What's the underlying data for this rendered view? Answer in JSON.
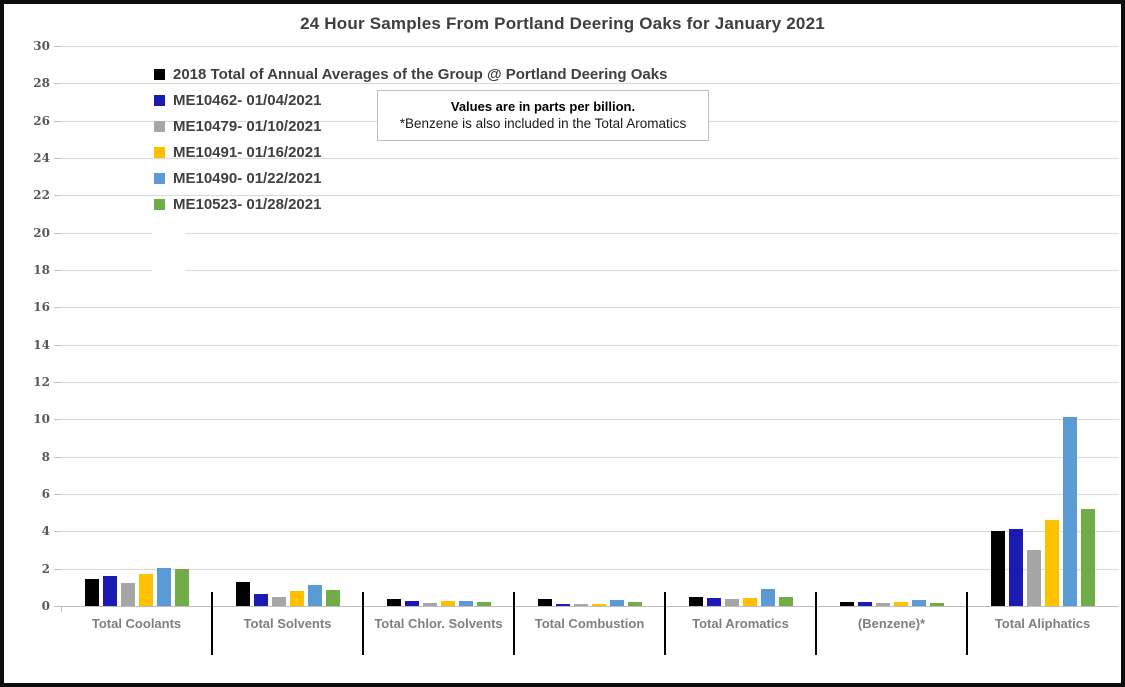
{
  "chart_data": {
    "type": "bar",
    "title": "24 Hour Samples From Portland Deering Oaks for January 2021",
    "note": {
      "line1": "Values are in parts per billion.",
      "line2": "*Benzene is also included in the Total Aromatics"
    },
    "units": "parts per billion",
    "categories": [
      "Total Coolants",
      "Total Solvents",
      "Total Chlor. Solvents",
      "Total Combustion",
      "Total Aromatics",
      "(Benzene)*",
      "Total Aliphatics"
    ],
    "series": [
      {
        "name": "2018 Total of Annual Averages of the Group @ Portland Deering Oaks",
        "color": "#000000",
        "values": [
          1.45,
          1.3,
          0.4,
          0.35,
          0.5,
          0.2,
          4.0
        ]
      },
      {
        "name": "ME10462- 01/04/2021",
        "color": "#1b1bb3",
        "values": [
          1.6,
          0.65,
          0.25,
          0.12,
          0.45,
          0.22,
          4.1
        ]
      },
      {
        "name": "ME10479- 01/10/2021",
        "color": "#a6a6a6",
        "values": [
          1.25,
          0.5,
          0.18,
          0.1,
          0.35,
          0.14,
          3.0
        ]
      },
      {
        "name": "ME10491- 01/16/2021",
        "color": "#ffc000",
        "values": [
          1.7,
          0.8,
          0.28,
          0.12,
          0.45,
          0.2,
          4.6
        ]
      },
      {
        "name": "ME10490- 01/22/2021",
        "color": "#5b9bd5",
        "values": [
          2.05,
          1.15,
          0.28,
          0.3,
          0.9,
          0.33,
          10.1
        ]
      },
      {
        "name": "ME10523- 01/28/2021",
        "color": "#70ad47",
        "values": [
          2.0,
          0.85,
          0.23,
          0.22,
          0.5,
          0.18,
          5.2
        ]
      }
    ],
    "ylim": [
      0,
      30
    ],
    "ytick_step": 2,
    "grid": true,
    "legend_position": "top-left"
  }
}
